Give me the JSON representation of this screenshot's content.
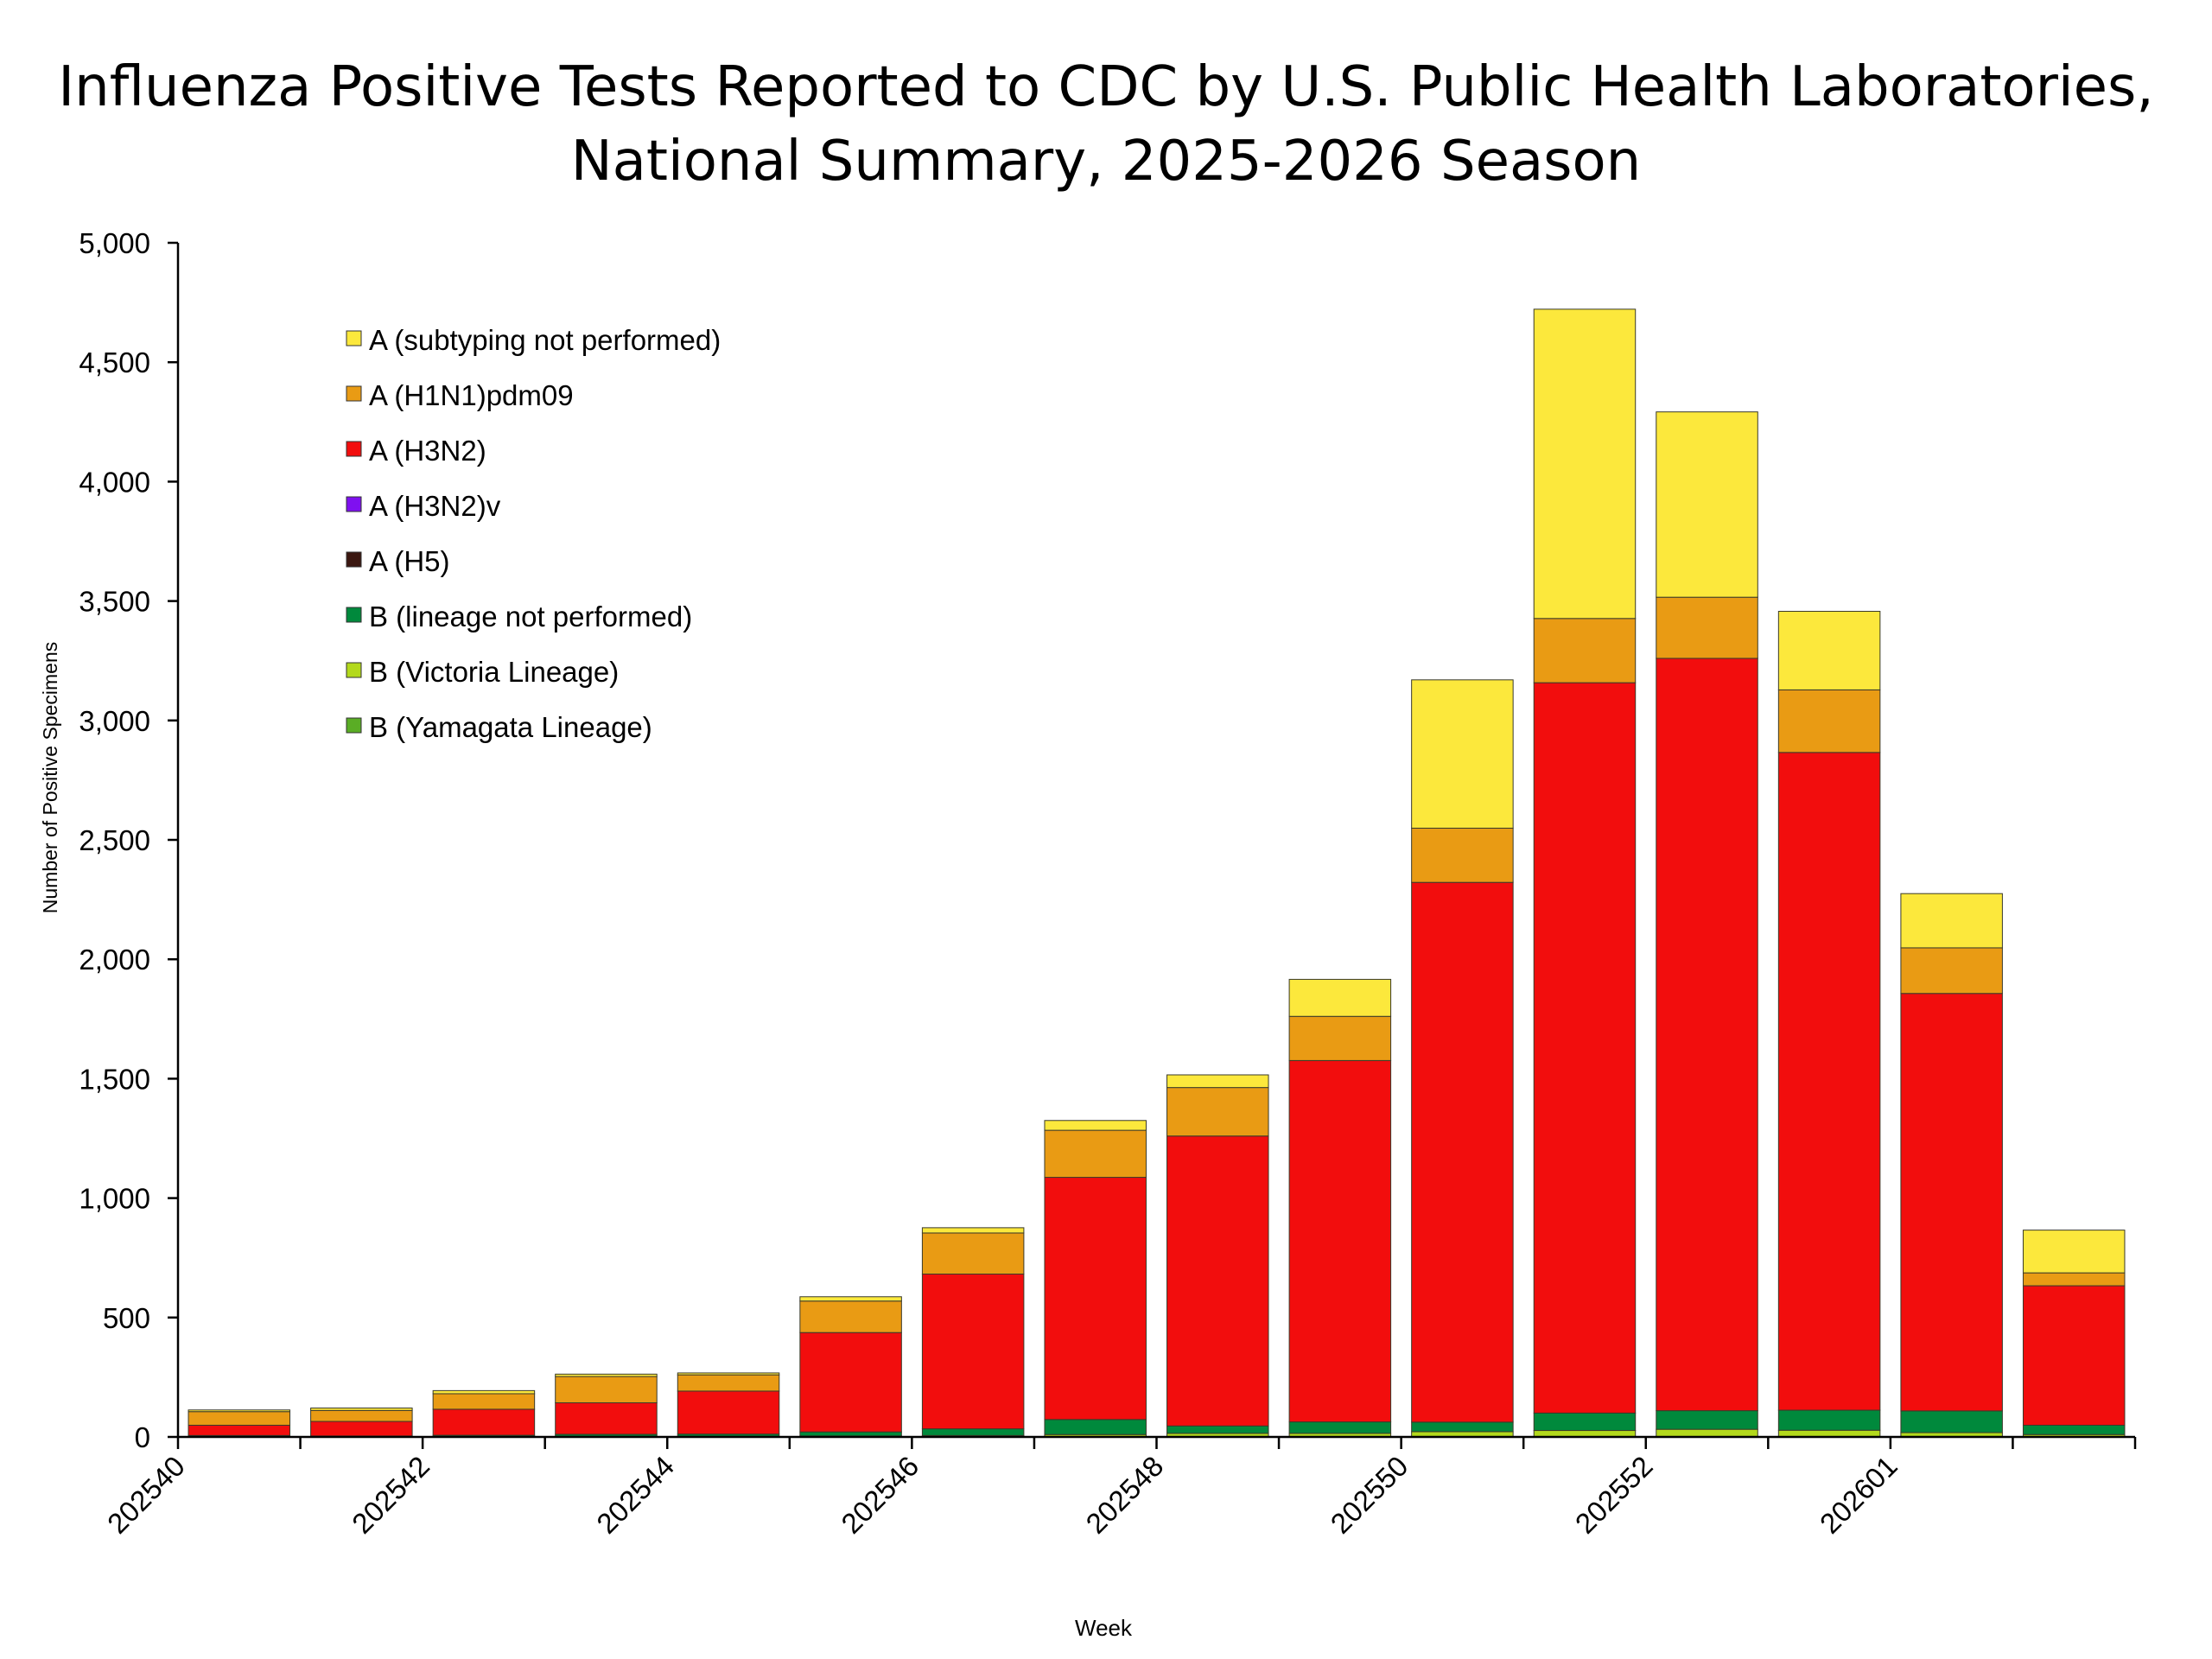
{
  "chart_data": {
    "type": "bar",
    "stacked": true,
    "title_line1": "Influenza Positive Tests Reported to CDC by U.S. Public Health Laboratories,",
    "title_line2": "National Summary, 2025-2026 Season",
    "xlabel": "Week",
    "ylabel": "Number of Positive Specimens",
    "ylim": [
      0,
      5000
    ],
    "yticks": [
      0,
      500,
      1000,
      1500,
      2000,
      2500,
      3000,
      3500,
      4000,
      4500,
      5000
    ],
    "ytick_labels": [
      "0",
      "500",
      "1,000",
      "1,500",
      "2,000",
      "2,500",
      "3,000",
      "3,500",
      "4,000",
      "4,500",
      "5,000"
    ],
    "grid": false,
    "legend_position": "top-left",
    "categories": [
      "202540",
      "202541",
      "202542",
      "202543",
      "202544",
      "202545",
      "202546",
      "202547",
      "202548",
      "202549",
      "202550",
      "202551",
      "202552",
      "202553",
      "202601",
      "202602"
    ],
    "xtick_labels": [
      "202540",
      "",
      "202542",
      "",
      "202544",
      "",
      "202546",
      "",
      "202548",
      "",
      "202550",
      "",
      "202552",
      "",
      "202601",
      ""
    ],
    "series": [
      {
        "name": "B (Yamagata Lineage)",
        "color": "#5aad25",
        "values": [
          0,
          0,
          0,
          0,
          0,
          0,
          0,
          0,
          0,
          0,
          0,
          0,
          0,
          0,
          0,
          0
        ]
      },
      {
        "name": "B (Victoria Lineage)",
        "color": "#b3d91c",
        "values": [
          2,
          1,
          2,
          3,
          3,
          4,
          6,
          10,
          15,
          15,
          22,
          27,
          32,
          28,
          18,
          10
        ]
      },
      {
        "name": "B (lineage not performed)",
        "color": "#00893c",
        "values": [
          4,
          3,
          5,
          8,
          9,
          17,
          28,
          63,
          31,
          48,
          40,
          73,
          78,
          84,
          91,
          39
        ]
      },
      {
        "name": "A (H5)",
        "color": "#3b1710",
        "values": [
          0,
          0,
          0,
          0,
          0,
          0,
          0,
          0,
          0,
          0,
          0,
          0,
          0,
          0,
          0,
          0
        ]
      },
      {
        "name": "A (H3N2)v",
        "color": "#7f10f0",
        "values": [
          0,
          0,
          0,
          0,
          0,
          0,
          0,
          0,
          0,
          0,
          0,
          0,
          0,
          0,
          0,
          0
        ]
      },
      {
        "name": "A (H3N2)",
        "color": "#f20d0d",
        "values": [
          43,
          61,
          109,
          132,
          180,
          416,
          648,
          1014,
          1214,
          1513,
          2260,
          3058,
          3150,
          2754,
          1748,
          584
        ]
      },
      {
        "name": "A (H1N1)pdm09",
        "color": "#e99b14",
        "values": [
          57,
          46,
          65,
          110,
          68,
          132,
          172,
          197,
          203,
          185,
          227,
          269,
          256,
          262,
          191,
          54
        ]
      },
      {
        "name": "A (subtyping not performed)",
        "color": "#fce83c",
        "values": [
          7,
          10,
          13,
          10,
          8,
          18,
          22,
          41,
          53,
          155,
          621,
          1295,
          776,
          329,
          227,
          179
        ]
      }
    ],
    "legend_order": [
      "A (subtyping not performed)",
      "A (H1N1)pdm09",
      "A (H3N2)",
      "A (H3N2)v",
      "A (H5)",
      "B (lineage not performed)",
      "B (Victoria Lineage)",
      "B (Yamagata Lineage)"
    ]
  }
}
